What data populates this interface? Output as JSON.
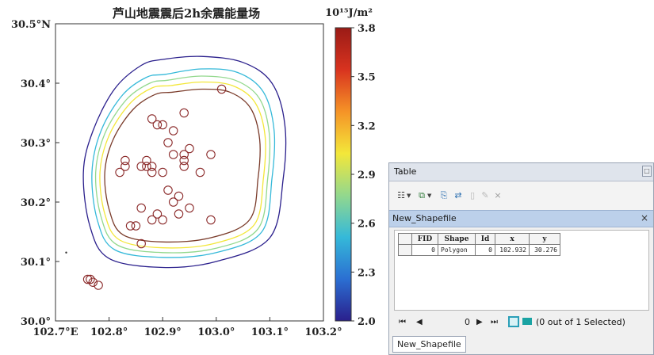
{
  "chart_data": {
    "type": "contour",
    "title": "芦山地震震后2h余震能量场",
    "colorbar": {
      "unit_label": "10¹⁵J/m²",
      "ticks": [
        "3.8",
        "3.5",
        "3.2",
        "2.9",
        "2.6",
        "2.3",
        "2.0"
      ],
      "range": [
        2.0,
        3.8
      ],
      "colors": [
        "#2a1f8c",
        "#2b6fd2",
        "#35b9d9",
        "#93d88d",
        "#f3e73a",
        "#f59327",
        "#d8331f",
        "#9a1b16"
      ]
    },
    "x_ticks": [
      "102.7°E",
      "102.8°",
      "102.9°",
      "103.0°",
      "103.1°",
      "103.2°"
    ],
    "y_ticks": [
      "30.5°N",
      "30.4°",
      "30.3°",
      "30.2°",
      "30.1°",
      "30.0°"
    ],
    "xlim": [
      102.7,
      103.2
    ],
    "ylim": [
      30.0,
      30.5
    ],
    "aftershocks": [
      {
        "x": 103.01,
        "y": 30.39
      },
      {
        "x": 102.94,
        "y": 30.35
      },
      {
        "x": 102.88,
        "y": 30.34
      },
      {
        "x": 102.89,
        "y": 30.33
      },
      {
        "x": 102.9,
        "y": 30.33
      },
      {
        "x": 102.92,
        "y": 30.32
      },
      {
        "x": 102.91,
        "y": 30.3
      },
      {
        "x": 102.92,
        "y": 30.28
      },
      {
        "x": 102.94,
        "y": 30.28
      },
      {
        "x": 102.95,
        "y": 30.29
      },
      {
        "x": 102.99,
        "y": 30.28
      },
      {
        "x": 102.83,
        "y": 30.27
      },
      {
        "x": 102.87,
        "y": 30.27
      },
      {
        "x": 102.94,
        "y": 30.27
      },
      {
        "x": 102.83,
        "y": 30.26
      },
      {
        "x": 102.86,
        "y": 30.26
      },
      {
        "x": 102.87,
        "y": 30.26
      },
      {
        "x": 102.88,
        "y": 30.26
      },
      {
        "x": 102.94,
        "y": 30.26
      },
      {
        "x": 102.82,
        "y": 30.25
      },
      {
        "x": 102.88,
        "y": 30.25
      },
      {
        "x": 102.9,
        "y": 30.25
      },
      {
        "x": 102.97,
        "y": 30.25
      },
      {
        "x": 102.91,
        "y": 30.22
      },
      {
        "x": 102.93,
        "y": 30.21
      },
      {
        "x": 102.92,
        "y": 30.2
      },
      {
        "x": 102.86,
        "y": 30.19
      },
      {
        "x": 102.89,
        "y": 30.18
      },
      {
        "x": 102.93,
        "y": 30.18
      },
      {
        "x": 102.95,
        "y": 30.19
      },
      {
        "x": 102.88,
        "y": 30.17
      },
      {
        "x": 102.9,
        "y": 30.17
      },
      {
        "x": 102.99,
        "y": 30.17
      },
      {
        "x": 102.84,
        "y": 30.16
      },
      {
        "x": 102.85,
        "y": 30.16
      },
      {
        "x": 102.86,
        "y": 30.13
      },
      {
        "x": 102.76,
        "y": 30.07
      },
      {
        "x": 102.765,
        "y": 30.07
      },
      {
        "x": 102.77,
        "y": 30.065
      },
      {
        "x": 102.78,
        "y": 30.06
      }
    ],
    "stray_point": {
      "x": 102.72,
      "y": 30.115
    },
    "contours": [
      {
        "color": "#2a1f8c",
        "level": 2.0,
        "points": [
          [
            102.9,
            30.44
          ],
          [
            102.972,
            30.445
          ],
          [
            103.05,
            30.435
          ],
          [
            103.104,
            30.4
          ],
          [
            103.128,
            30.33
          ],
          [
            103.125,
            30.24
          ],
          [
            103.1,
            30.14
          ],
          [
            103.0,
            30.1
          ],
          [
            102.9,
            30.09
          ],
          [
            102.8,
            30.105
          ],
          [
            102.764,
            30.16
          ],
          [
            102.752,
            30.25
          ],
          [
            102.77,
            30.32
          ],
          [
            102.81,
            30.39
          ],
          [
            102.86,
            30.43
          ]
        ]
      },
      {
        "color": "#35b9d9",
        "level": 2.4,
        "points": [
          [
            102.905,
            30.415
          ],
          [
            102.972,
            30.424
          ],
          [
            103.04,
            30.418
          ],
          [
            103.088,
            30.385
          ],
          [
            103.108,
            30.32
          ],
          [
            103.104,
            30.24
          ],
          [
            103.085,
            30.15
          ],
          [
            103.0,
            30.115
          ],
          [
            102.9,
            30.107
          ],
          [
            102.81,
            30.12
          ],
          [
            102.778,
            30.17
          ],
          [
            102.768,
            30.25
          ],
          [
            102.785,
            30.32
          ],
          [
            102.825,
            30.38
          ],
          [
            102.87,
            30.41
          ]
        ]
      },
      {
        "color": "#93d88d",
        "level": 2.7,
        "points": [
          [
            102.91,
            30.405
          ],
          [
            102.972,
            30.412
          ],
          [
            103.035,
            30.405
          ],
          [
            103.08,
            30.375
          ],
          [
            103.099,
            30.315
          ],
          [
            103.096,
            30.24
          ],
          [
            103.078,
            30.155
          ],
          [
            102.998,
            30.122
          ],
          [
            102.9,
            30.115
          ],
          [
            102.815,
            30.128
          ],
          [
            102.785,
            30.175
          ],
          [
            102.775,
            30.25
          ],
          [
            102.792,
            30.315
          ],
          [
            102.832,
            30.372
          ],
          [
            102.876,
            30.4
          ]
        ]
      },
      {
        "color": "#f3e73a",
        "level": 3.0,
        "points": [
          [
            102.915,
            30.396
          ],
          [
            102.973,
            30.402
          ],
          [
            103.03,
            30.396
          ],
          [
            103.072,
            30.368
          ],
          [
            103.091,
            30.312
          ],
          [
            103.088,
            30.24
          ],
          [
            103.071,
            30.162
          ],
          [
            102.995,
            30.13
          ],
          [
            102.9,
            30.123
          ],
          [
            102.82,
            30.136
          ],
          [
            102.792,
            30.18
          ],
          [
            102.783,
            30.25
          ],
          [
            102.8,
            30.312
          ],
          [
            102.838,
            30.365
          ],
          [
            102.88,
            30.392
          ]
        ]
      },
      {
        "color": "#7a3b2a",
        "level": 3.4,
        "points": [
          [
            102.92,
            30.385
          ],
          [
            102.974,
            30.39
          ],
          [
            103.025,
            30.385
          ],
          [
            103.064,
            30.358
          ],
          [
            103.081,
            30.305
          ],
          [
            103.078,
            30.24
          ],
          [
            103.062,
            30.17
          ],
          [
            102.99,
            30.14
          ],
          [
            102.9,
            30.133
          ],
          [
            102.826,
            30.145
          ],
          [
            102.8,
            30.188
          ],
          [
            102.792,
            30.25
          ],
          [
            102.808,
            30.306
          ],
          [
            102.845,
            30.356
          ],
          [
            102.886,
            30.381
          ]
        ]
      }
    ]
  },
  "table_window": {
    "title": "Table",
    "maximize_glyph": "□",
    "toolbar": {
      "options_glyph": "☷",
      "select_glyph": "⧉",
      "related_glyph": "⎘",
      "switch_glyph": "⇄",
      "clear_glyph": "▯",
      "zoom_glyph": "✎",
      "delete_glyph": "×"
    },
    "tab_label": "New_Shapefile",
    "tab_close": "×",
    "columns": [
      "FID",
      "Shape",
      "Id",
      "x",
      "y"
    ],
    "rows": [
      [
        "0",
        "Polygon",
        "0",
        "102.932",
        "30.276"
      ]
    ],
    "navigation": {
      "first": "⏮",
      "prev": "◀",
      "current_record": "0",
      "next": "▶",
      "last": "⏭",
      "status": "(0 out of 1 Selected)"
    },
    "bottom_tab": "New_Shapefile"
  }
}
